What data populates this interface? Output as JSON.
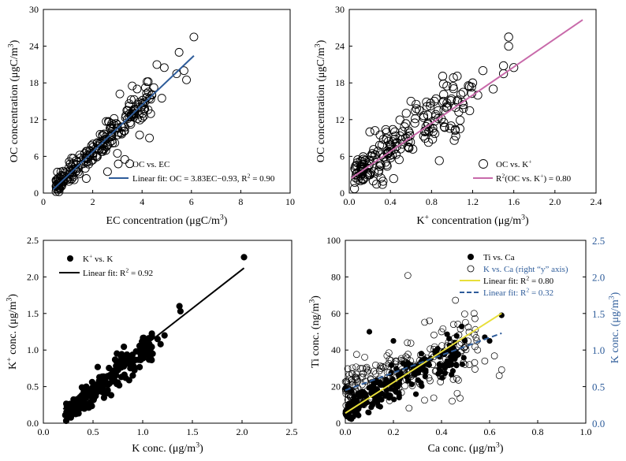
{
  "chart_data": [
    {
      "type": "scatter",
      "xlim": [
        0,
        10
      ],
      "ylim": [
        0,
        30
      ],
      "xticks": [
        "0",
        "2",
        "4",
        "6",
        "8",
        "10"
      ],
      "yticks": [
        "0",
        "6",
        "12",
        "18",
        "24",
        "30"
      ],
      "xlabel_parts": [
        "EC concentration (μgC/m",
        "3",
        ")"
      ],
      "ylabel_parts": [
        "OC concentration (μgC/m",
        "3",
        ")"
      ],
      "legend": {
        "marker_label": "OC vs. EC",
        "fit_label": "Linear fit: OC = 3.83EC−0.93, R",
        "fit_sup": "2",
        "fit_tail": " = 0.90"
      },
      "fit": {
        "slope": 3.83,
        "intercept": -0.93,
        "x_range": [
          0.4,
          6.1
        ],
        "color": "#2e5c9a"
      },
      "marker": "open",
      "cluster": {
        "x_min": 0.5,
        "x_max": 4.5,
        "slope": 3.85,
        "intercept": -0.9,
        "spread": 1.4,
        "count": 230
      },
      "points": [
        [
          6.1,
          25.5
        ],
        [
          5.5,
          23.0
        ],
        [
          5.7,
          20.0
        ],
        [
          5.4,
          19.5
        ],
        [
          5.8,
          18.5
        ],
        [
          4.6,
          21.0
        ],
        [
          4.9,
          20.5
        ],
        [
          4.2,
          18.2
        ],
        [
          4.8,
          15.5
        ],
        [
          4.4,
          16.0
        ],
        [
          3.9,
          9.5
        ],
        [
          4.3,
          9.0
        ],
        [
          3.3,
          5.5
        ],
        [
          3.5,
          4.8
        ],
        [
          2.6,
          3.5
        ],
        [
          3.0,
          6.5
        ],
        [
          3.6,
          17.5
        ],
        [
          3.8,
          17.0
        ],
        [
          3.1,
          16.2
        ]
      ]
    },
    {
      "type": "scatter",
      "xlim": [
        0,
        2.4
      ],
      "ylim": [
        0,
        30
      ],
      "xticks": [
        "0.0",
        "0.4",
        "0.8",
        "1.2",
        "1.6",
        "2.0",
        "2.4"
      ],
      "yticks": [
        "0",
        "6",
        "12",
        "18",
        "24",
        "30"
      ],
      "xlabel_parts": [
        "K",
        "+",
        " concentration (μg/m",
        "3",
        ")"
      ],
      "ylabel_parts": [
        "OC concentration (μgC/m",
        "3",
        ")"
      ],
      "legend": {
        "marker_label": "OC vs. K",
        "marker_sup": "+",
        "fit_label": "R",
        "fit_sup": "2",
        "fit_tail": "(OC vs. K",
        "fit_sup2": "+",
        "fit_tail2": ") = 0.80"
      },
      "fit": {
        "slope": 11.5,
        "intercept": 2.2,
        "x_range": [
          0.02,
          2.27
        ],
        "color": "#c86aaa"
      },
      "marker": "open",
      "cluster": {
        "x_min": 0.05,
        "x_max": 1.2,
        "slope": 11.0,
        "intercept": 2.5,
        "spread": 2.6,
        "count": 200
      },
      "points": [
        [
          1.55,
          25.5
        ],
        [
          1.55,
          24.0
        ],
        [
          1.6,
          20.5
        ],
        [
          1.5,
          20.8
        ],
        [
          1.5,
          19.5
        ],
        [
          1.3,
          20.0
        ],
        [
          1.2,
          18.0
        ],
        [
          1.4,
          17.0
        ],
        [
          1.25,
          16.0
        ],
        [
          0.95,
          17.5
        ],
        [
          1.05,
          15.0
        ],
        [
          0.6,
          15.0
        ],
        [
          0.65,
          14.5
        ],
        [
          0.2,
          10.0
        ],
        [
          0.25,
          10.2
        ],
        [
          0.3,
          9.5
        ]
      ]
    },
    {
      "type": "scatter",
      "xlim": [
        0,
        2.5
      ],
      "ylim": [
        0,
        2.5
      ],
      "xticks": [
        "0.0",
        "0.5",
        "1.0",
        "1.5",
        "2.0",
        "2.5"
      ],
      "yticks": [
        "0.0",
        "0.5",
        "1.0",
        "1.5",
        "2.0",
        "2.5"
      ],
      "xlabel_parts": [
        "K conc. (μg/m",
        "3",
        ")"
      ],
      "ylabel_parts": [
        "K",
        "+",
        " conc. (μg/m",
        "3",
        ")"
      ],
      "legend": {
        "marker_label": "K",
        "marker_sup": "+",
        "marker_tail": " vs. K",
        "fit_label": "Linear fit: R",
        "fit_sup": "2",
        "fit_tail": " = 0.92"
      },
      "fit": {
        "slope": 1.06,
        "intercept": -0.02,
        "x_range": [
          0.2,
          2.02
        ],
        "color": "#000000"
      },
      "marker": "filled",
      "cluster": {
        "x_min": 0.22,
        "x_max": 1.1,
        "slope": 1.06,
        "intercept": -0.1,
        "spread": 0.12,
        "count": 220
      },
      "points": [
        [
          2.02,
          2.27
        ],
        [
          1.37,
          1.6
        ],
        [
          1.38,
          1.53
        ],
        [
          1.15,
          1.15
        ],
        [
          1.22,
          1.2
        ],
        [
          1.18,
          1.08
        ],
        [
          1.1,
          0.95
        ],
        [
          1.08,
          1.02
        ]
      ]
    },
    {
      "type": "scatter",
      "xlim": [
        0,
        1.0
      ],
      "ylim": [
        0,
        100
      ],
      "y2lim": [
        0,
        2.5
      ],
      "xticks": [
        "0.0",
        "0.2",
        "0.4",
        "0.6",
        "0.8",
        "1.0"
      ],
      "yticks": [
        "0",
        "20",
        "40",
        "60",
        "80",
        "100"
      ],
      "y2ticks": [
        "0.0",
        "0.5",
        "1.0",
        "1.5",
        "2.0",
        "2.5"
      ],
      "xlabel_parts": [
        "Ca conc. (μg/m",
        "3",
        ")"
      ],
      "ylabel_parts": [
        "Ti conc. (ng/m",
        "3",
        ")"
      ],
      "y2label_parts": [
        "K conc. (μg/m",
        "3",
        ")"
      ],
      "y2_color": "#2e5c9a",
      "legend": {
        "items": [
          {
            "label": "Ti vs. Ca",
            "kind": "filled"
          },
          {
            "label": "K vs. Ca (right “y” axis)",
            "kind": "open",
            "color": "#2e5c9a"
          },
          {
            "label": "Linear fit: R",
            "sup": "2",
            "tail": " = 0.80",
            "kind": "line",
            "color": "#e8df3a"
          },
          {
            "label": "Linear fit: R",
            "sup": "2",
            "tail": " = 0.32",
            "kind": "dash",
            "color": "#2e5c9a"
          }
        ]
      },
      "fit_ti": {
        "slope": 84,
        "intercept": 5.5,
        "x_range": [
          0.0,
          0.65
        ],
        "color": "#e8df3a"
      },
      "fit_k": {
        "slope": 1.2,
        "intercept": 0.45,
        "x_range": [
          0.0,
          0.65
        ],
        "color": "#2e5c9a",
        "axis": "right"
      },
      "cluster_ti": {
        "x_min": 0.0,
        "x_max": 0.5,
        "slope": 75,
        "intercept": 6,
        "spread": 6,
        "count": 230
      },
      "cluster_k": {
        "x_min": 0.0,
        "x_max": 0.55,
        "slope": 1.1,
        "intercept": 0.45,
        "spread": 0.25,
        "count": 230
      },
      "points_ti": [
        [
          0.65,
          59
        ],
        [
          0.58,
          47
        ],
        [
          0.6,
          45
        ],
        [
          0.1,
          50
        ],
        [
          0.2,
          45
        ],
        [
          0.0,
          19
        ]
      ],
      "points_k": [
        [
          0.26,
          2.02
        ],
        [
          0.33,
          1.38
        ],
        [
          0.35,
          1.4
        ],
        [
          0.4,
          1.25
        ],
        [
          0.45,
          1.35
        ],
        [
          0.62,
          0.92
        ],
        [
          0.65,
          0.73
        ],
        [
          0.64,
          0.65
        ],
        [
          0.58,
          0.85
        ],
        [
          0.55,
          1.0
        ],
        [
          0.5,
          1.05
        ]
      ]
    }
  ]
}
